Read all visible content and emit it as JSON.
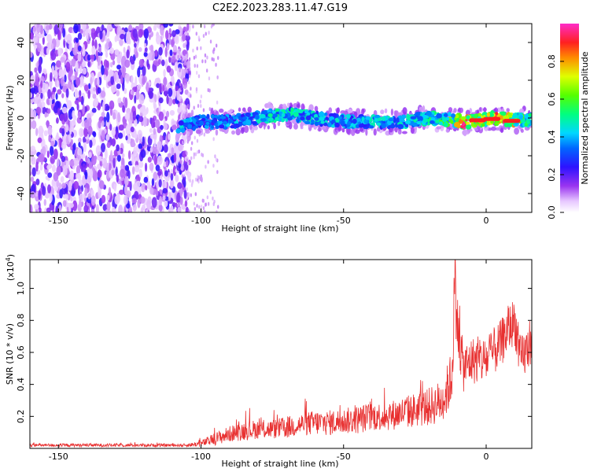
{
  "title": "C2E2.2023.283.11.47.G19",
  "colors": {
    "snr_line": "#e83030",
    "axis": "#000000"
  },
  "colorbar": {
    "label": "Normalized spectral amplitude",
    "ticks": [
      "0.0",
      "0.2",
      "0.4",
      "0.6",
      "0.8"
    ],
    "tick_values": [
      0.0,
      0.2,
      0.4,
      0.6,
      0.8
    ],
    "range": [
      0,
      1
    ],
    "colormap": "rainbow (white-violet-blue-cyan-green-yellow-red-magenta)"
  },
  "chart_data": [
    {
      "type": "heatmap",
      "title": "C2E2.2023.283.11.47.G19",
      "xlabel": "Height of straight line (km)",
      "ylabel": "Frequency (Hz)",
      "xlim": [
        -160,
        16
      ],
      "ylim": [
        -50,
        50
      ],
      "x_ticks": [
        -150,
        -100,
        -50,
        0
      ],
      "x_tick_labels": [
        "-150",
        "-100",
        "-50",
        "0"
      ],
      "y_ticks": [
        -40,
        -20,
        0,
        20,
        40
      ],
      "y_tick_labels": [
        "-40",
        "-20",
        "0",
        "20",
        "40"
      ],
      "noise_region_x": [
        -160,
        -108
      ],
      "signal_start_x": -109,
      "signal_trace": [
        {
          "x": -108,
          "y": -4,
          "amp": 0.45
        },
        {
          "x": -100,
          "y": -2,
          "amp": 0.35
        },
        {
          "x": -90,
          "y": -2,
          "amp": 0.4
        },
        {
          "x": -80,
          "y": 0,
          "amp": 0.45
        },
        {
          "x": -70,
          "y": 2,
          "amp": 0.5
        },
        {
          "x": -60,
          "y": 0,
          "amp": 0.45
        },
        {
          "x": -50,
          "y": -2,
          "amp": 0.45
        },
        {
          "x": -40,
          "y": -2,
          "amp": 0.45
        },
        {
          "x": -30,
          "y": -2,
          "amp": 0.45
        },
        {
          "x": -20,
          "y": 0,
          "amp": 0.5
        },
        {
          "x": -12,
          "y": -1,
          "amp": 0.6
        },
        {
          "x": -8,
          "y": -2,
          "amp": 0.9
        },
        {
          "x": 0,
          "y": -1,
          "amp": 0.7
        },
        {
          "x": 2,
          "y": 0,
          "amp": 0.95
        },
        {
          "x": 8,
          "y": -1,
          "amp": 0.85
        },
        {
          "x": 12,
          "y": -1,
          "amp": 0.6
        },
        {
          "x": 16,
          "y": -1,
          "amp": 0.5
        }
      ]
    },
    {
      "type": "line",
      "xlabel": "Height of straight line (km)",
      "ylabel": "SNR (10 * v/v)",
      "y_multiplier_label": "(x10",
      "y_multiplier_exp": "4",
      "y_multiplier_close": ")",
      "xlim": [
        -160,
        16
      ],
      "ylim": [
        0,
        1.18
      ],
      "x_ticks": [
        -150,
        -100,
        -50,
        0
      ],
      "x_tick_labels": [
        "-150",
        "-100",
        "-50",
        "0"
      ],
      "y_ticks": [
        0.2,
        0.4,
        0.6,
        0.8,
        1.0
      ],
      "y_tick_labels": [
        "0.2",
        "0.4",
        "0.6",
        "0.8",
        "1.0"
      ],
      "series": [
        {
          "x": [
            -160,
            -140,
            -120,
            -105,
            -100,
            -95,
            -90,
            -85,
            -80,
            -75,
            -70,
            -65,
            -60,
            -55,
            -50,
            -45,
            -40,
            -35,
            -30,
            -25,
            -20,
            -15,
            -12,
            -11,
            -10,
            -8,
            -5,
            0,
            5,
            8,
            10,
            12,
            14,
            16
          ],
          "y": [
            0.02,
            0.02,
            0.02,
            0.02,
            0.03,
            0.06,
            0.09,
            0.11,
            0.12,
            0.12,
            0.13,
            0.15,
            0.16,
            0.16,
            0.17,
            0.18,
            0.2,
            0.2,
            0.22,
            0.24,
            0.26,
            0.3,
            0.45,
            1.05,
            0.75,
            0.5,
            0.55,
            0.55,
            0.65,
            0.75,
            0.8,
            0.55,
            0.6,
            0.7
          ],
          "noise_amplitude": [
            0.01,
            0.01,
            0.01,
            0.01,
            0.02,
            0.04,
            0.05,
            0.06,
            0.06,
            0.06,
            0.07,
            0.07,
            0.08,
            0.08,
            0.08,
            0.09,
            0.09,
            0.09,
            0.1,
            0.11,
            0.12,
            0.14,
            0.18,
            0.25,
            0.2,
            0.15,
            0.15,
            0.15,
            0.15,
            0.15,
            0.15,
            0.15,
            0.15,
            0.15
          ]
        }
      ]
    }
  ]
}
